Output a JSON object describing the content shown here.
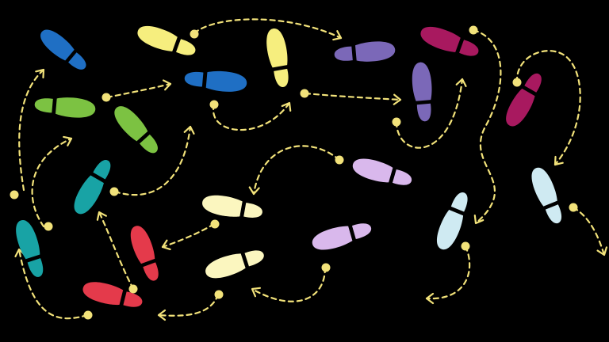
{
  "palette": {
    "background": "#000000",
    "path": "#f2e27a",
    "dot": "#f2e27a"
  },
  "footprints": [
    {
      "name": "footprint-blue-1",
      "color": "#1f6fc4"
    },
    {
      "name": "footprint-yellow-1",
      "color": "#f6ee7e"
    },
    {
      "name": "footprint-yellow-2",
      "color": "#f6ee7e"
    },
    {
      "name": "footprint-blue-2",
      "color": "#1f6fc4"
    },
    {
      "name": "footprint-purple-1",
      "color": "#7b68b8"
    },
    {
      "name": "footprint-purple-2",
      "color": "#7b68b8"
    },
    {
      "name": "footprint-magenta-1",
      "color": "#a8195f"
    },
    {
      "name": "footprint-magenta-2",
      "color": "#a8195f"
    },
    {
      "name": "footprint-green-1",
      "color": "#7cc242"
    },
    {
      "name": "footprint-green-2",
      "color": "#7cc242"
    },
    {
      "name": "footprint-teal-1",
      "color": "#18a3a5"
    },
    {
      "name": "footprint-teal-2",
      "color": "#18a3a5"
    },
    {
      "name": "footprint-cream-1",
      "color": "#fbf6bf"
    },
    {
      "name": "footprint-cream-2",
      "color": "#fbf6bf"
    },
    {
      "name": "footprint-lilac-1",
      "color": "#d9b8ec"
    },
    {
      "name": "footprint-lilac-2",
      "color": "#d9b8ec"
    },
    {
      "name": "footprint-lightblue-1",
      "color": "#cfeaf2"
    },
    {
      "name": "footprint-lightblue-2",
      "color": "#cfeaf2"
    },
    {
      "name": "footprint-red-1",
      "color": "#e43a4b"
    },
    {
      "name": "footprint-red-2",
      "color": "#e43a4b"
    }
  ]
}
